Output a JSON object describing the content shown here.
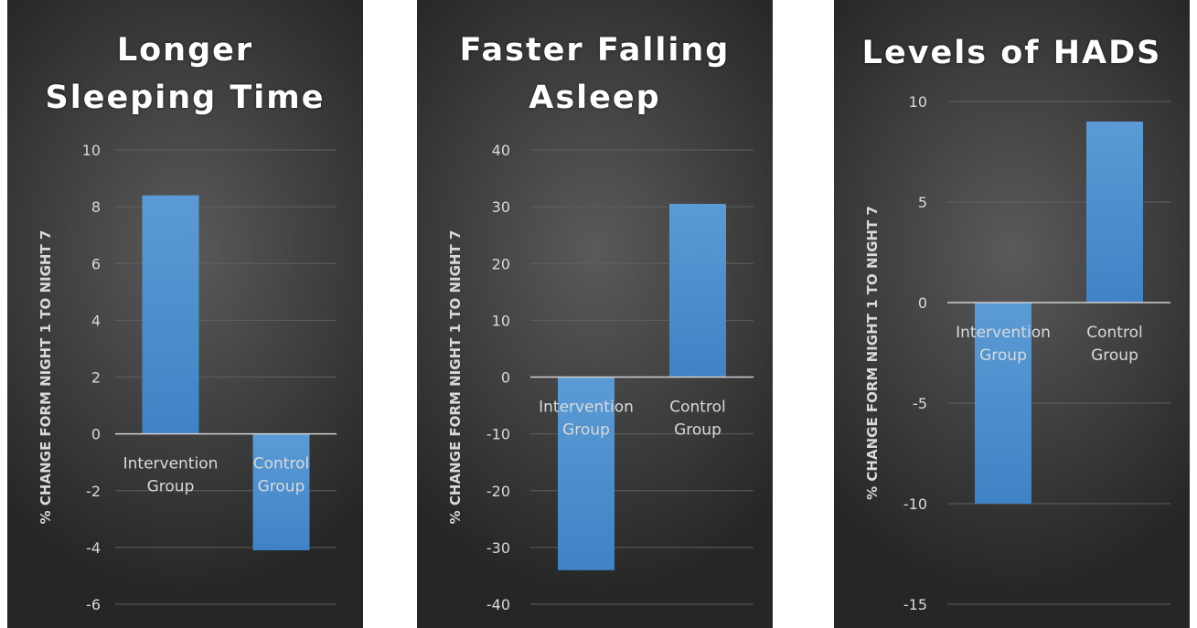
{
  "chart_data": [
    {
      "type": "bar",
      "title": "Longer\nSleeping Time",
      "ylabel": "% CHANGE FORM NIGHT 1 TO NIGHT 7",
      "categories": [
        "Intervention Group",
        "Control Group"
      ],
      "series": [
        {
          "values": [
            8.4,
            -4.1
          ]
        }
      ],
      "ylim": [
        -6,
        10
      ],
      "yticks": [
        10,
        8,
        6,
        4,
        2,
        0,
        -2,
        -4,
        -6
      ],
      "grid": true
    },
    {
      "type": "bar",
      "title": "Faster Falling\nAsleep",
      "ylabel": "% CHANGE FORM NIGHT 1 TO NIGHT 7",
      "categories": [
        "Intervention Group",
        "Control Group"
      ],
      "series": [
        {
          "values": [
            -34,
            30.5
          ]
        }
      ],
      "ylim": [
        -40,
        40
      ],
      "yticks": [
        40,
        30,
        20,
        10,
        0,
        -10,
        -20,
        -30,
        -40
      ],
      "grid": true
    },
    {
      "type": "bar",
      "title": "Levels of HADS",
      "ylabel": "% CHANGE FORM NIGHT 1 TO NIGHT 7",
      "categories": [
        "Intervention Group",
        "Control Group"
      ],
      "series": [
        {
          "values": [
            -10,
            9
          ]
        }
      ],
      "ylim": [
        -15,
        10
      ],
      "yticks": [
        10,
        5,
        0,
        -5,
        -10,
        -15
      ],
      "grid": true
    }
  ],
  "colors": {
    "bar": "#5b9bd5",
    "bar_dark": "#3f83c6",
    "gridline": "#606060",
    "zero_line": "#d0d0d0",
    "text": "#d9d9d9",
    "title": "#ffffff"
  }
}
